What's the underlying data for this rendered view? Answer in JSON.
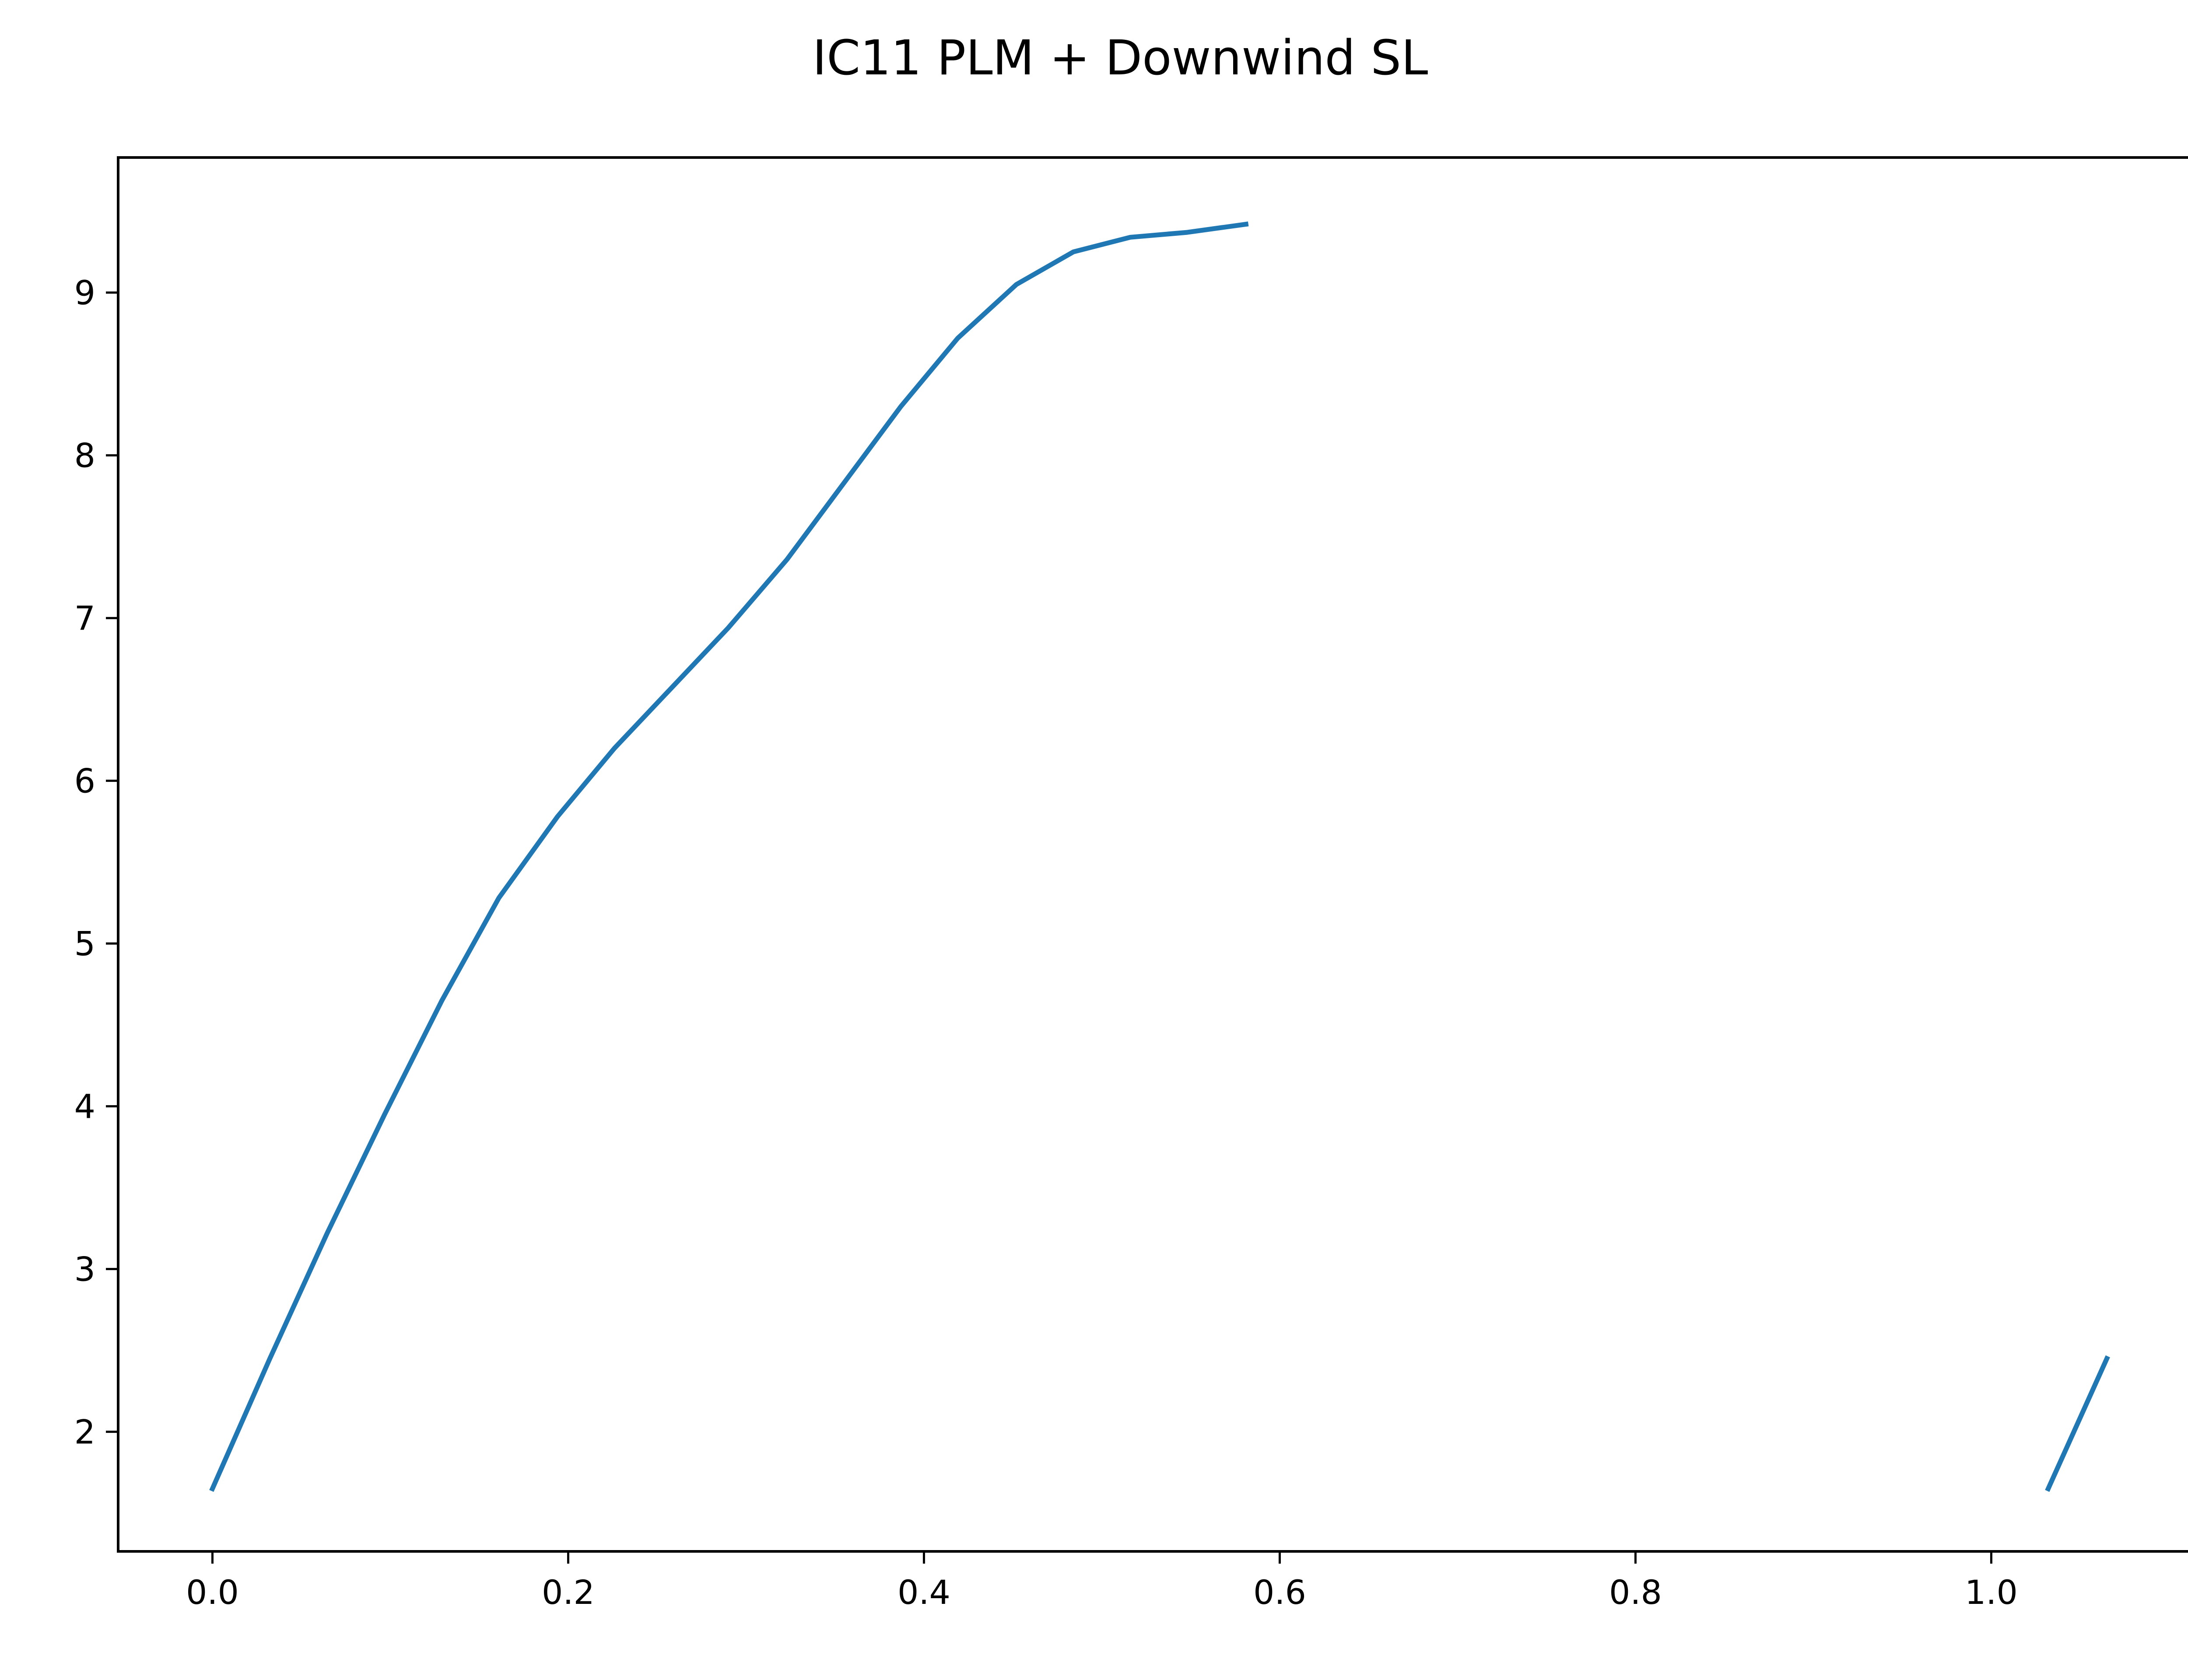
{
  "chart_data": {
    "type": "line",
    "title": "IC11 PLM + Downwind SL",
    "xlabel": "",
    "ylabel": "",
    "xlim": [
      -0.053,
      1.117
    ],
    "ylim": [
      1.265,
      9.83
    ],
    "xticks": [
      "0.0",
      "0.2",
      "0.4",
      "0.6",
      "0.8",
      "1.0"
    ],
    "xtick_values": [
      0.0,
      0.2,
      0.4,
      0.6,
      0.8,
      1.0
    ],
    "yticks": [
      "2",
      "3",
      "4",
      "5",
      "6",
      "7",
      "8",
      "9"
    ],
    "ytick_values": [
      2,
      3,
      4,
      5,
      6,
      7,
      8,
      9
    ],
    "grid": false,
    "line_color": "#1f77b4",
    "series": [
      {
        "segments": [
          {
            "x": [
              0.0,
              0.0323,
              0.0645,
              0.0968,
              0.129,
              0.161,
              0.194,
              0.226,
              0.258,
              0.29,
              0.323,
              0.355,
              0.387,
              0.419,
              0.452,
              0.484,
              0.516,
              0.548,
              0.581
            ],
            "y": [
              1.65,
              2.45,
              3.22,
              3.95,
              4.65,
              5.28,
              5.78,
              6.2,
              6.57,
              6.94,
              7.36,
              7.83,
              8.3,
              8.72,
              9.05,
              9.25,
              9.34,
              9.37,
              9.42
            ]
          },
          {
            "x": [
              1.032,
              1.065
            ],
            "y": [
              1.65,
              2.45
            ]
          }
        ]
      }
    ]
  }
}
